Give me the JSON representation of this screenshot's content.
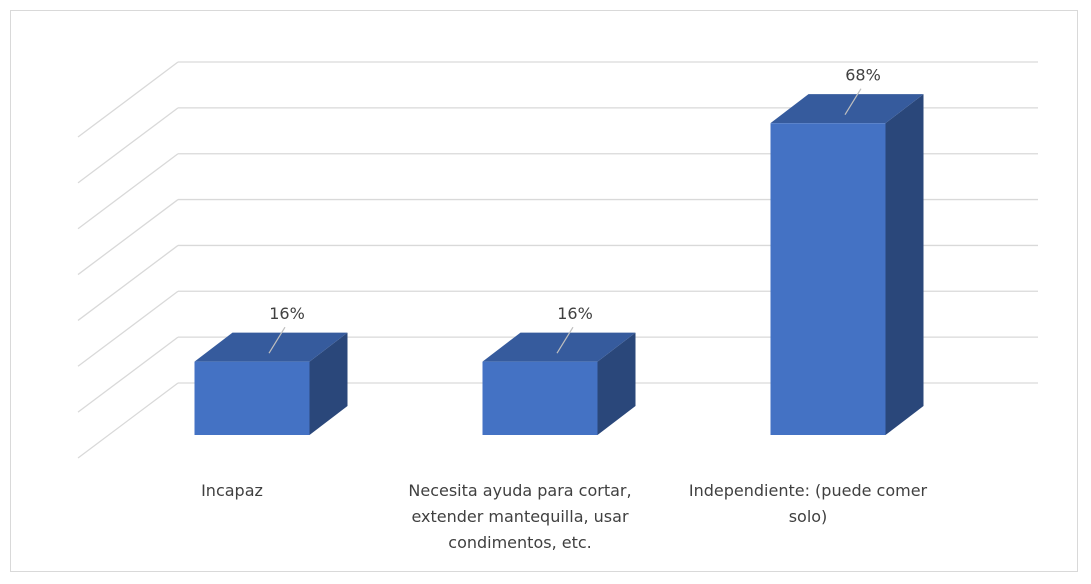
{
  "chart_data": {
    "type": "bar3d",
    "categories": [
      "Incapaz",
      "Necesita ayuda para cortar, extender mantequilla, usar condimentos, etc.",
      "Independiente: (puede comer solo)"
    ],
    "values": [
      16,
      16,
      68
    ],
    "value_labels": [
      "16%",
      "16%",
      "68%"
    ],
    "color": "#4472c4",
    "ylim": [
      0,
      70
    ],
    "yticks": [
      0,
      10,
      20,
      30,
      40,
      50,
      60,
      70
    ],
    "grid": true
  }
}
